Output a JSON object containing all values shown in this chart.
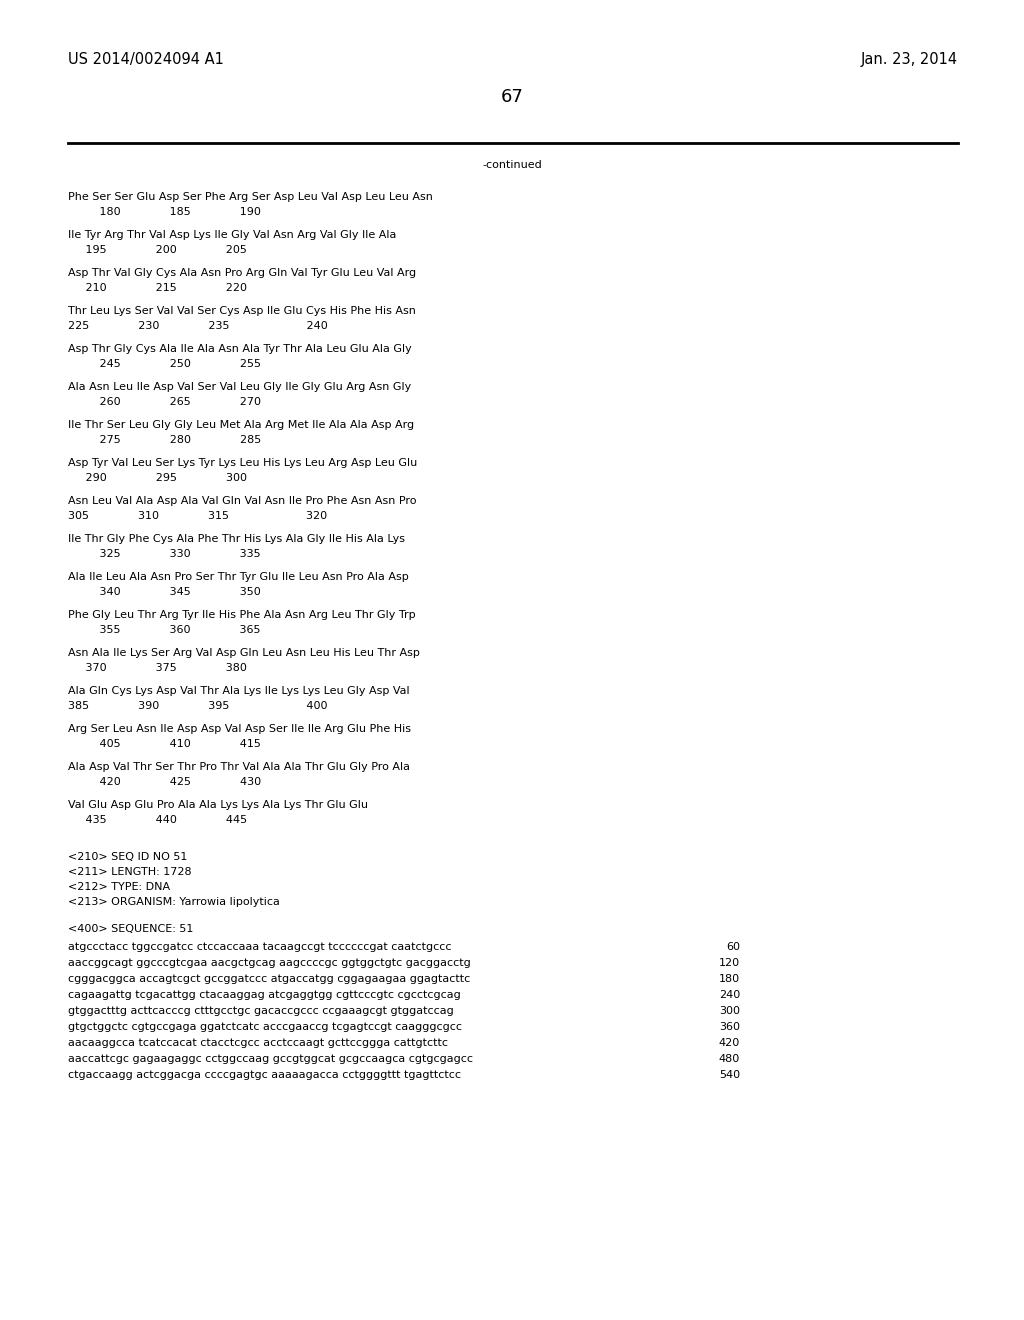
{
  "bg_color": "#ffffff",
  "header_left": "US 2014/0024094 A1",
  "header_right": "Jan. 23, 2014",
  "page_number": "67",
  "continued_text": "-continued",
  "font_family": "Courier New",
  "header_fontsize": 10.5,
  "body_fontsize": 8.0,
  "amino_lines": [
    [
      "Phe Ser Ser Glu Asp Ser Phe Arg Ser Asp Leu Val Asp Leu Leu Asn",
      "         180              185              190"
    ],
    [
      "Ile Tyr Arg Thr Val Asp Lys Ile Gly Val Asn Arg Val Gly Ile Ala",
      "     195              200              205"
    ],
    [
      "Asp Thr Val Gly Cys Ala Asn Pro Arg Gln Val Tyr Glu Leu Val Arg",
      "     210              215              220"
    ],
    [
      "Thr Leu Lys Ser Val Val Ser Cys Asp Ile Glu Cys His Phe His Asn",
      "225              230              235                      240"
    ],
    [
      "Asp Thr Gly Cys Ala Ile Ala Asn Ala Tyr Thr Ala Leu Glu Ala Gly",
      "         245              250              255"
    ],
    [
      "Ala Asn Leu Ile Asp Val Ser Val Leu Gly Ile Gly Glu Arg Asn Gly",
      "         260              265              270"
    ],
    [
      "Ile Thr Ser Leu Gly Gly Leu Met Ala Arg Met Ile Ala Ala Asp Arg",
      "         275              280              285"
    ],
    [
      "Asp Tyr Val Leu Ser Lys Tyr Lys Leu His Lys Leu Arg Asp Leu Glu",
      "     290              295              300"
    ],
    [
      "Asn Leu Val Ala Asp Ala Val Gln Val Asn Ile Pro Phe Asn Asn Pro",
      "305              310              315                      320"
    ],
    [
      "Ile Thr Gly Phe Cys Ala Phe Thr His Lys Ala Gly Ile His Ala Lys",
      "         325              330              335"
    ],
    [
      "Ala Ile Leu Ala Asn Pro Ser Thr Tyr Glu Ile Leu Asn Pro Ala Asp",
      "         340              345              350"
    ],
    [
      "Phe Gly Leu Thr Arg Tyr Ile His Phe Ala Asn Arg Leu Thr Gly Trp",
      "         355              360              365"
    ],
    [
      "Asn Ala Ile Lys Ser Arg Val Asp Gln Leu Asn Leu His Leu Thr Asp",
      "     370              375              380"
    ],
    [
      "Ala Gln Cys Lys Asp Val Thr Ala Lys Ile Lys Lys Leu Gly Asp Val",
      "385              390              395                      400"
    ],
    [
      "Arg Ser Leu Asn Ile Asp Asp Val Asp Ser Ile Ile Arg Glu Phe His",
      "         405              410              415"
    ],
    [
      "Ala Asp Val Thr Ser Thr Pro Thr Val Ala Ala Thr Glu Gly Pro Ala",
      "         420              425              430"
    ],
    [
      "Val Glu Asp Glu Pro Ala Ala Lys Lys Ala Lys Thr Glu Glu",
      "     435              440              445"
    ]
  ],
  "seq_info": [
    "<210> SEQ ID NO 51",
    "<211> LENGTH: 1728",
    "<212> TYPE: DNA",
    "<213> ORGANISM: Yarrowia lipolytica"
  ],
  "seq_label": "<400> SEQUENCE: 51",
  "dna_lines": [
    [
      "atgccctacc tggccgatcc ctccaccaaa tacaagccgt tccccccgat caatctgccc",
      "60"
    ],
    [
      "aaccggcagt ggcccgtcgaa aacgctgcag aagccccgc ggtggctgtc gacggacctg",
      "120"
    ],
    [
      "cgggacggca accagtcgct gccggatccc atgaccatgg cggagaagaa ggagtacttc",
      "180"
    ],
    [
      "cagaagattg tcgacattgg ctacaaggag atcgaggtgg cgttcccgtc cgcctcgcag",
      "240"
    ],
    [
      "gtggactttg acttcacccg ctttgcctgc gacaccgccc ccgaaagcgt gtggatccag",
      "300"
    ],
    [
      "gtgctggctc cgtgccgaga ggatctcatc acccgaaccg tcgagtccgt caagggcgcc",
      "360"
    ],
    [
      "aacaaggcca tcatccacat ctacctcgcc acctccaagt gcttccggga cattgtcttc",
      "420"
    ],
    [
      "aaccattcgc gagaagaggc cctggccaag gccgtggcat gcgccaagca cgtgcgagcc",
      "480"
    ],
    [
      "ctgaccaagg actcggacga ccccgagtgc aaaaagacca cctggggttt tgagttctcc",
      "540"
    ]
  ]
}
